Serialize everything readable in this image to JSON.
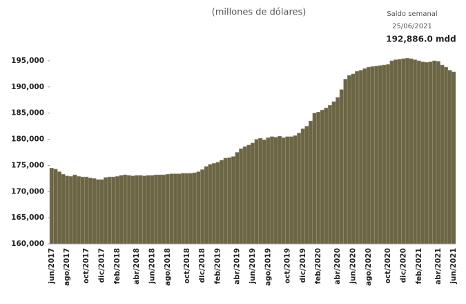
{
  "chart_data": {
    "type": "bar",
    "subtitle": "(millones de dólares)",
    "annotations": [
      "Saldo semanal",
      "25/06/2021",
      "192,886.0 mdd"
    ],
    "color": "#6b6545",
    "ylim": [
      160000,
      196000
    ],
    "yticks": [
      {
        "value": 160000,
        "label": "160,000"
      },
      {
        "value": 165000,
        "label": "165,000"
      },
      {
        "value": 170000,
        "label": "170,000"
      },
      {
        "value": 175000,
        "label": "175,000"
      },
      {
        "value": 180000,
        "label": "180,000"
      },
      {
        "value": 185000,
        "label": "185,000"
      },
      {
        "value": 190000,
        "label": "190,000"
      },
      {
        "value": 195000,
        "label": "195,000"
      }
    ],
    "categories": [
      "jun/2017",
      null,
      null,
      null,
      "ago/2017",
      null,
      null,
      null,
      null,
      "oct/2017",
      null,
      null,
      null,
      "dic/2017",
      null,
      null,
      null,
      "feb/2018",
      null,
      null,
      null,
      null,
      "abr/2018",
      null,
      null,
      null,
      "jun/2018",
      null,
      null,
      null,
      "ago/2018",
      null,
      null,
      null,
      null,
      "oct/2018",
      null,
      null,
      null,
      "dic/2018",
      null,
      null,
      null,
      "feb/2019",
      null,
      null,
      null,
      null,
      "abr/2019",
      null,
      null,
      null,
      "jun/2019",
      null,
      null,
      null,
      "ago/2019",
      null,
      null,
      null,
      null,
      "oct/2019",
      null,
      null,
      null,
      "dic/2019",
      null,
      null,
      null,
      "feb/2020",
      null,
      null,
      null,
      null,
      "abr/2020",
      null,
      null,
      null,
      "jun/2020",
      null,
      null,
      null,
      "ago/2020",
      null,
      null,
      null,
      null,
      "oct/2020",
      null,
      null,
      null,
      "dic/2020",
      null,
      null,
      null,
      "feb/2021",
      null,
      null,
      null,
      null,
      "abr/2021",
      null,
      null,
      null,
      "jun/2021"
    ],
    "values": [
      174500,
      174300,
      173800,
      173300,
      173000,
      172900,
      173200,
      172900,
      172800,
      172800,
      172600,
      172500,
      172300,
      172300,
      172700,
      172800,
      172800,
      172900,
      173100,
      173200,
      173100,
      173000,
      173100,
      173100,
      173000,
      173100,
      173100,
      173200,
      173200,
      173200,
      173300,
      173400,
      173400,
      173400,
      173500,
      173500,
      173500,
      173600,
      173800,
      174200,
      174800,
      175200,
      175400,
      175600,
      176000,
      176400,
      176500,
      176700,
      177500,
      178200,
      178600,
      178900,
      179300,
      180000,
      180200,
      179900,
      180300,
      180500,
      180400,
      180600,
      180300,
      180500,
      180500,
      180700,
      181200,
      182000,
      182500,
      183500,
      185000,
      185200,
      185600,
      186000,
      186500,
      187200,
      188000,
      189500,
      191500,
      192200,
      192500,
      193000,
      193200,
      193500,
      193800,
      193900,
      194000,
      194100,
      194200,
      194300,
      195000,
      195200,
      195300,
      195400,
      195500,
      195400,
      195200,
      195000,
      194800,
      194700,
      194800,
      195000,
      194900,
      194200,
      193800,
      193200,
      192886
    ]
  }
}
